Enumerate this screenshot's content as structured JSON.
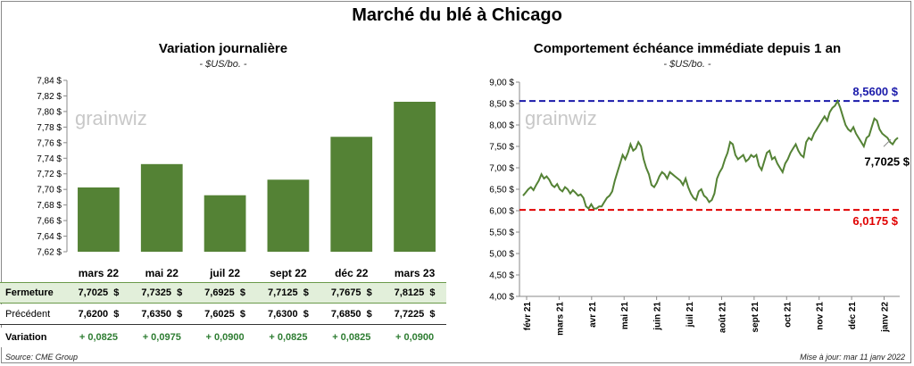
{
  "page": {
    "title": "Marché du blé à Chicago",
    "source": "Source: CME Group",
    "updated": "Mise à jour: mar 11 janv 2022",
    "watermark": "grainwiz"
  },
  "chart_data": [
    {
      "type": "bar",
      "title": "Variation journalière",
      "unit": "- $US/bo. -",
      "categories": [
        "mars 22",
        "mai 22",
        "juil 22",
        "sept 22",
        "déc 22",
        "mars 23"
      ],
      "values": [
        7.7025,
        7.7325,
        7.6925,
        7.7125,
        7.7675,
        7.8125
      ],
      "ylim": [
        7.62,
        7.84
      ],
      "yticks": [
        "7,62 $",
        "7,64 $",
        "7,66 $",
        "7,68 $",
        "7,70 $",
        "7,72 $",
        "7,74 $",
        "7,76 $",
        "7,78 $",
        "7,80 $",
        "7,82 $",
        "7,84 $"
      ],
      "bar_color": "#548235",
      "table": {
        "rows": [
          {
            "label": "Fermeture",
            "values": [
              "7,7025  $",
              "7,7325  $",
              "7,6925  $",
              "7,7125  $",
              "7,7675  $",
              "7,8125  $"
            ],
            "bg": "#e2efda"
          },
          {
            "label": "Précédent",
            "values": [
              "7,6200  $",
              "7,6350  $",
              "7,6025  $",
              "7,6300  $",
              "7,6850  $",
              "7,7225  $"
            ],
            "bg": "#ffffff"
          },
          {
            "label": "Variation",
            "values": [
              "+ 0,0825",
              "+ 0,0975",
              "+ 0,0900",
              "+ 0,0825",
              "+ 0,0825",
              "+ 0,0900"
            ],
            "bg": "#ffffff",
            "color": "#2e7d32"
          }
        ]
      }
    },
    {
      "type": "line",
      "title": "Comportement  échéance immédiate depuis 1 an",
      "unit": "- $US/bo. -",
      "ylim": [
        4.0,
        9.0
      ],
      "yticks": [
        "4,00 $",
        "4,50 $",
        "5,00 $",
        "5,50 $",
        "6,00 $",
        "6,50 $",
        "7,00 $",
        "7,50 $",
        "8,00 $",
        "8,50 $",
        "9,00 $"
      ],
      "xticks": [
        "févr 21",
        "mars 21",
        "avr 21",
        "mai 21",
        "juin 21",
        "juil 21",
        "août 21",
        "sept 21",
        "oct 21",
        "nov 21",
        "déc 21",
        "janv 22"
      ],
      "line_color": "#548235",
      "high": {
        "value": 8.56,
        "label": "8,5600  $",
        "color": "#1a1aaa"
      },
      "low": {
        "value": 6.0175,
        "label": "6,0175  $",
        "color": "#e00000"
      },
      "last": {
        "value": 7.7025,
        "label": "7,7025 $"
      },
      "series": [
        {
          "values": [
            6.35,
            6.42,
            6.5,
            6.55,
            6.48,
            6.6,
            6.7,
            6.85,
            6.75,
            6.8,
            6.72,
            6.6,
            6.55,
            6.62,
            6.5,
            6.45,
            6.55,
            6.5,
            6.4,
            6.48,
            6.42,
            6.35,
            6.38,
            6.3,
            6.1,
            6.05,
            6.15,
            6.05,
            6.05,
            6.1,
            6.1,
            6.2,
            6.3,
            6.35,
            6.45,
            6.7,
            6.9,
            7.1,
            7.3,
            7.2,
            7.35,
            7.55,
            7.4,
            7.45,
            7.6,
            7.5,
            7.2,
            7.0,
            6.85,
            6.6,
            6.55,
            6.65,
            6.8,
            6.9,
            6.85,
            6.75,
            6.9,
            6.85,
            6.8,
            6.75,
            6.7,
            6.6,
            6.75,
            6.55,
            6.4,
            6.3,
            6.25,
            6.45,
            6.5,
            6.35,
            6.3,
            6.2,
            6.25,
            6.4,
            6.75,
            6.9,
            7.0,
            7.2,
            7.35,
            7.6,
            7.55,
            7.3,
            7.2,
            7.25,
            7.3,
            7.15,
            7.2,
            7.3,
            7.25,
            7.3,
            7.05,
            6.95,
            7.15,
            7.35,
            7.4,
            7.2,
            7.25,
            7.1,
            7.0,
            6.9,
            7.1,
            7.2,
            7.35,
            7.45,
            7.55,
            7.4,
            7.3,
            7.25,
            7.6,
            7.7,
            7.65,
            7.8,
            7.9,
            8.0,
            8.1,
            8.2,
            8.1,
            8.3,
            8.4,
            8.45,
            8.56,
            8.4,
            8.2,
            8.0,
            7.9,
            7.85,
            7.95,
            7.8,
            7.7,
            7.6,
            7.5,
            7.7,
            7.75,
            7.95,
            8.15,
            8.1,
            7.9,
            7.8,
            7.75,
            7.7,
            7.6,
            7.55,
            7.65,
            7.7025
          ]
        }
      ]
    }
  ]
}
